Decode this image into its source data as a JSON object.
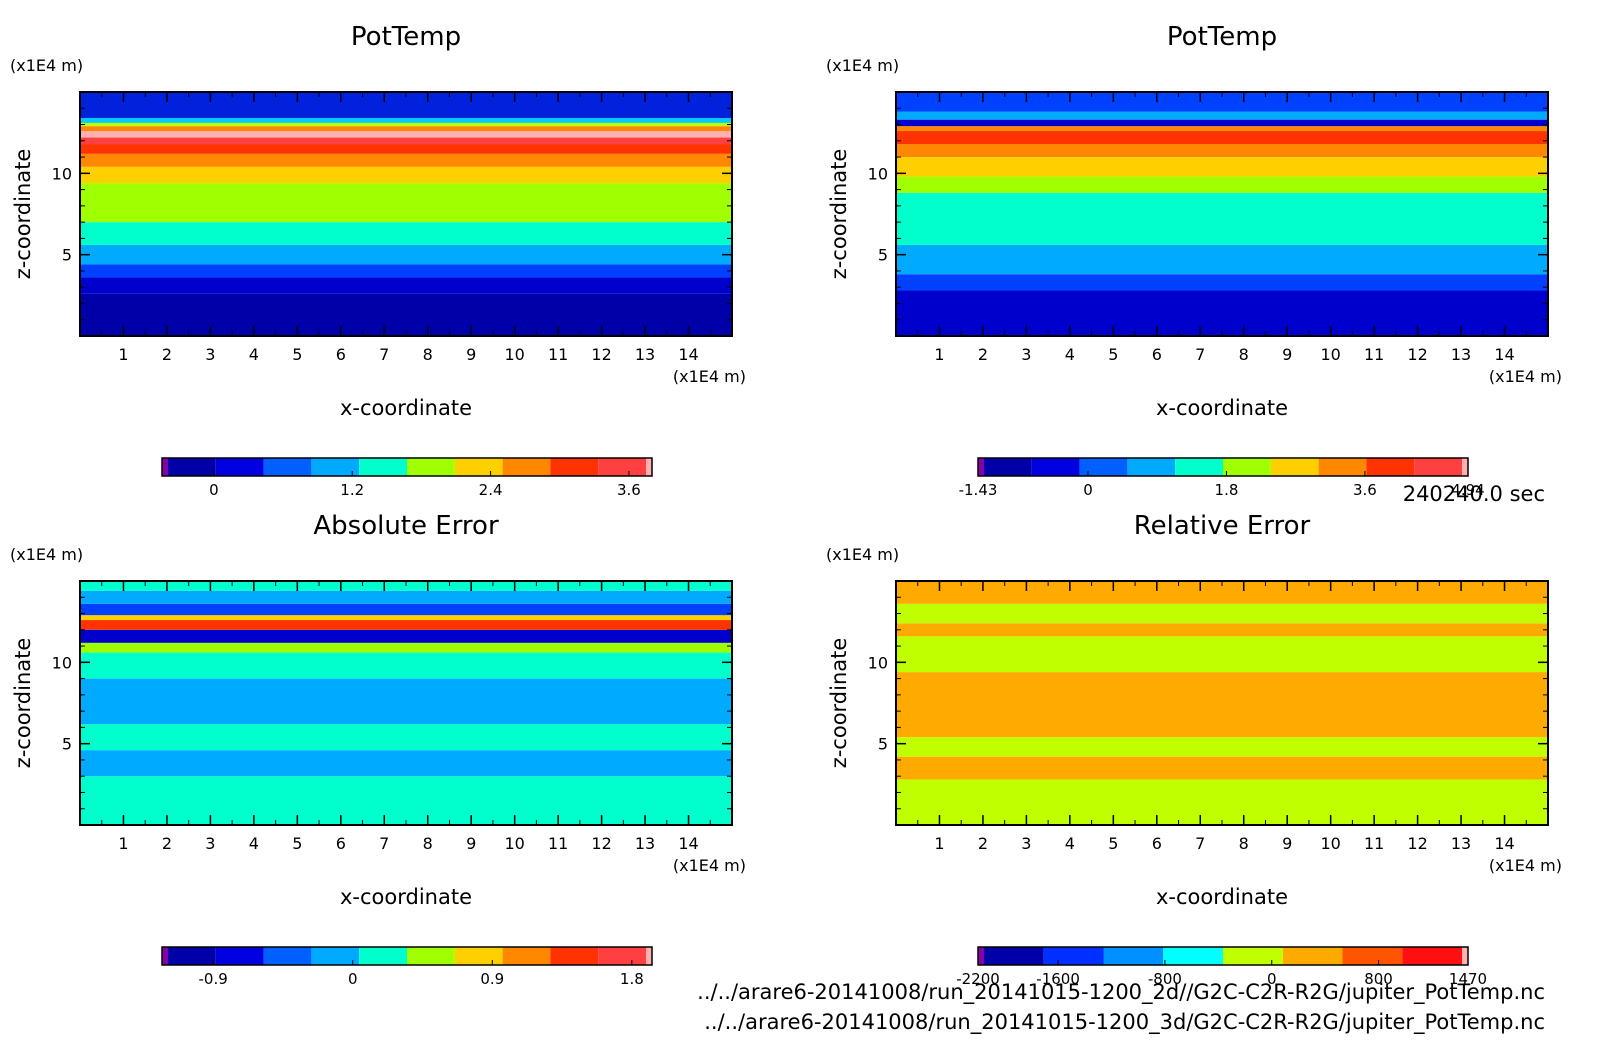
{
  "time_label": "240240.0 sec",
  "footer": {
    "line1": "../../arare6-20141008/run_20141015-1200_2d//G2C-C2R-R2G/jupiter_PotTemp.nc",
    "line2": "../../arare6-20141008/run_20141015-1200_3d/G2C-C2R-R2G/jupiter_PotTemp.nc"
  },
  "chart_data": [
    {
      "type": "heatmap",
      "title": "PotTemp",
      "xlabel": "x-coordinate",
      "ylabel": "z-coordinate",
      "x_unit": "(x1E4 m)",
      "y_unit": "(x1E4 m)",
      "xlim": [
        0,
        15
      ],
      "ylim": [
        0,
        15
      ],
      "x_ticks": [
        "1",
        "2",
        "3",
        "4",
        "5",
        "6",
        "7",
        "8",
        "9",
        "10",
        "11",
        "12",
        "13",
        "14"
      ],
      "y_ticks": [
        "5",
        "10"
      ],
      "bands": [
        {
          "z_top": 2.6,
          "color": "#0000a8"
        },
        {
          "z_top": 3.6,
          "color": "#0000cd"
        },
        {
          "z_top": 4.4,
          "color": "#0040ff"
        },
        {
          "z_top": 5.6,
          "color": "#00aaff"
        },
        {
          "z_top": 7.0,
          "color": "#00ffcc"
        },
        {
          "z_top": 9.4,
          "color": "#a0ff00"
        },
        {
          "z_top": 10.4,
          "color": "#ffd000"
        },
        {
          "z_top": 11.2,
          "color": "#ff8800"
        },
        {
          "z_top": 11.8,
          "color": "#ff3300"
        },
        {
          "z_top": 12.2,
          "color": "#ff4040"
        },
        {
          "z_top": 12.6,
          "color": "#ffb0b0"
        },
        {
          "z_top": 12.9,
          "color": "#ff8800"
        },
        {
          "z_top": 13.1,
          "color": "#c0ff00"
        },
        {
          "z_top": 13.4,
          "color": "#00ccff"
        },
        {
          "z_top": 15.0,
          "color": "#0022dd"
        }
      ],
      "colorbar": {
        "colors": [
          "#8800aa",
          "#0000a8",
          "#0000e0",
          "#0060ff",
          "#00aaff",
          "#00ffcc",
          "#a0ff00",
          "#ffd000",
          "#ff8800",
          "#ff3300",
          "#ff4040",
          "#ffb0b0"
        ],
        "labels": [
          {
            "value": 0,
            "text": "0"
          },
          {
            "value": 1.2,
            "text": "1.2"
          },
          {
            "value": 2.4,
            "text": "2.4"
          },
          {
            "value": 3.6,
            "text": "3.6"
          }
        ],
        "range": [
          -0.45,
          3.8
        ]
      }
    },
    {
      "type": "heatmap",
      "title": "PotTemp",
      "xlabel": "x-coordinate",
      "ylabel": "z-coordinate",
      "x_unit": "(x1E4 m)",
      "y_unit": "(x1E4 m)",
      "xlim": [
        0,
        15
      ],
      "ylim": [
        0,
        15
      ],
      "x_ticks": [
        "1",
        "2",
        "3",
        "4",
        "5",
        "6",
        "7",
        "8",
        "9",
        "10",
        "11",
        "12",
        "13",
        "14"
      ],
      "y_ticks": [
        "5",
        "10"
      ],
      "bands": [
        {
          "z_top": 2.8,
          "color": "#0000cd"
        },
        {
          "z_top": 3.8,
          "color": "#0040ff"
        },
        {
          "z_top": 5.6,
          "color": "#00aaff"
        },
        {
          "z_top": 8.8,
          "color": "#00ffcc"
        },
        {
          "z_top": 9.8,
          "color": "#a0ff00"
        },
        {
          "z_top": 11.0,
          "color": "#ffd000"
        },
        {
          "z_top": 11.8,
          "color": "#ff8800"
        },
        {
          "z_top": 12.6,
          "color": "#ff3300"
        },
        {
          "z_top": 12.9,
          "color": "#ff8800"
        },
        {
          "z_top": 13.3,
          "color": "#0000cd"
        },
        {
          "z_top": 13.8,
          "color": "#00aaff"
        },
        {
          "z_top": 15.0,
          "color": "#0040ff"
        }
      ],
      "colorbar": {
        "colors": [
          "#8800aa",
          "#0000a8",
          "#0000e0",
          "#0060ff",
          "#00aaff",
          "#00ffcc",
          "#a0ff00",
          "#ffd000",
          "#ff8800",
          "#ff3300",
          "#ff4040",
          "#ffb0b0"
        ],
        "labels": [
          {
            "value": -1.43,
            "text": "-1.43"
          },
          {
            "value": 0,
            "text": "0"
          },
          {
            "value": 1.8,
            "text": "1.8"
          },
          {
            "value": 3.6,
            "text": "3.6"
          },
          {
            "value": 4.94,
            "text": "4.94"
          }
        ],
        "range": [
          -1.43,
          4.94
        ]
      }
    },
    {
      "type": "heatmap",
      "title": "Absolute Error",
      "xlabel": "x-coordinate",
      "ylabel": "z-coordinate",
      "x_unit": "(x1E4 m)",
      "y_unit": "(x1E4 m)",
      "xlim": [
        0,
        15
      ],
      "ylim": [
        0,
        15
      ],
      "x_ticks": [
        "1",
        "2",
        "3",
        "4",
        "5",
        "6",
        "7",
        "8",
        "9",
        "10",
        "11",
        "12",
        "13",
        "14"
      ],
      "y_ticks": [
        "5",
        "10"
      ],
      "bands": [
        {
          "z_top": 3.0,
          "color": "#00ffcc"
        },
        {
          "z_top": 4.6,
          "color": "#00aaff"
        },
        {
          "z_top": 6.2,
          "color": "#00ffcc"
        },
        {
          "z_top": 9.0,
          "color": "#00aaff"
        },
        {
          "z_top": 10.6,
          "color": "#00ffcc"
        },
        {
          "z_top": 11.2,
          "color": "#a0ff00"
        },
        {
          "z_top": 12.0,
          "color": "#0000cd"
        },
        {
          "z_top": 12.6,
          "color": "#ff3300"
        },
        {
          "z_top": 12.9,
          "color": "#ffd000"
        },
        {
          "z_top": 13.6,
          "color": "#0040ff"
        },
        {
          "z_top": 14.4,
          "color": "#00aaff"
        },
        {
          "z_top": 15.0,
          "color": "#00ffcc"
        }
      ],
      "colorbar": {
        "colors": [
          "#8800aa",
          "#0000a8",
          "#0000e0",
          "#0060ff",
          "#00aaff",
          "#00ffcc",
          "#a0ff00",
          "#ffd000",
          "#ff8800",
          "#ff3300",
          "#ff4040",
          "#ffb0b0"
        ],
        "labels": [
          {
            "value": -0.9,
            "text": "-0.9"
          },
          {
            "value": 0,
            "text": "0"
          },
          {
            "value": 0.9,
            "text": "0.9"
          },
          {
            "value": 1.8,
            "text": "1.8"
          }
        ],
        "range": [
          -1.23,
          1.93
        ]
      }
    },
    {
      "type": "heatmap",
      "title": "Relative Error",
      "xlabel": "x-coordinate",
      "ylabel": "z-coordinate",
      "x_unit": "(x1E4 m)",
      "y_unit": "(x1E4 m)",
      "xlim": [
        0,
        15
      ],
      "ylim": [
        0,
        15
      ],
      "x_ticks": [
        "1",
        "2",
        "3",
        "4",
        "5",
        "6",
        "7",
        "8",
        "9",
        "10",
        "11",
        "12",
        "13",
        "14"
      ],
      "y_ticks": [
        "5",
        "10"
      ],
      "bands": [
        {
          "z_top": 2.8,
          "color": "#c0ff00"
        },
        {
          "z_top": 4.2,
          "color": "#ffaa00"
        },
        {
          "z_top": 5.4,
          "color": "#c0ff00"
        },
        {
          "z_top": 9.4,
          "color": "#ffaa00"
        },
        {
          "z_top": 11.6,
          "color": "#c0ff00"
        },
        {
          "z_top": 12.4,
          "color": "#ffaa00"
        },
        {
          "z_top": 13.6,
          "color": "#c0ff00"
        },
        {
          "z_top": 15.0,
          "color": "#ffaa00"
        }
      ],
      "colorbar": {
        "colors": [
          "#8800aa",
          "#0000a8",
          "#0030ff",
          "#0090ff",
          "#00ffff",
          "#c0ff00",
          "#ffaa00",
          "#ff5500",
          "#ff1010",
          "#ffb0b0"
        ],
        "labels": [
          {
            "value": -2200,
            "text": "-2200"
          },
          {
            "value": -1600,
            "text": "-1600"
          },
          {
            "value": -800,
            "text": "-800"
          },
          {
            "value": 0,
            "text": "0"
          },
          {
            "value": 800,
            "text": "800"
          },
          {
            "value": 1470,
            "text": "1470"
          }
        ],
        "range": [
          -2200,
          1470
        ]
      }
    }
  ]
}
